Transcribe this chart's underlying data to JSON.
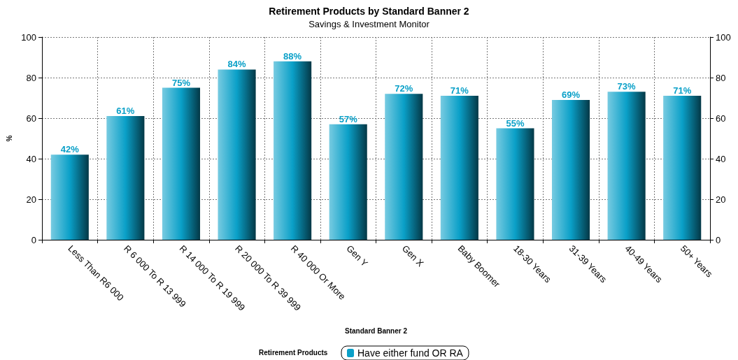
{
  "chart_data": {
    "type": "bar",
    "title": "Retirement Products by Standard Banner 2",
    "subtitle": "Savings & Investment Monitor",
    "xlabel": "Standard Banner 2",
    "ylabel": "%",
    "legend_title": "Retirement Products",
    "categories": [
      "Less Than R6 000",
      "R 6 000 To R 13 999",
      "R 14 000 To R 19 999",
      "R 20 000 To R 39 999",
      "R 40 000 Or More",
      "Gen Y",
      "Gen X",
      "Baby Boomer",
      "18-30 Years",
      "31-39 Years",
      "40-49 Years",
      "50+ Years"
    ],
    "series": [
      {
        "name": "Have either fund OR RA",
        "color": "#0aa0c8",
        "values": [
          42,
          61,
          75,
          84,
          88,
          57,
          72,
          71,
          55,
          69,
          73,
          71
        ],
        "value_labels": [
          "42%",
          "61%",
          "75%",
          "84%",
          "88%",
          "57%",
          "72%",
          "71%",
          "55%",
          "69%",
          "73%",
          "71%"
        ]
      }
    ],
    "ylim": [
      0,
      100
    ],
    "yticks": [
      0,
      20,
      40,
      60,
      80,
      100
    ],
    "y2lim": [
      0,
      100
    ],
    "y2ticks": [
      0,
      20,
      40,
      60,
      80,
      100
    ],
    "grid": true,
    "legend": "bottom"
  }
}
